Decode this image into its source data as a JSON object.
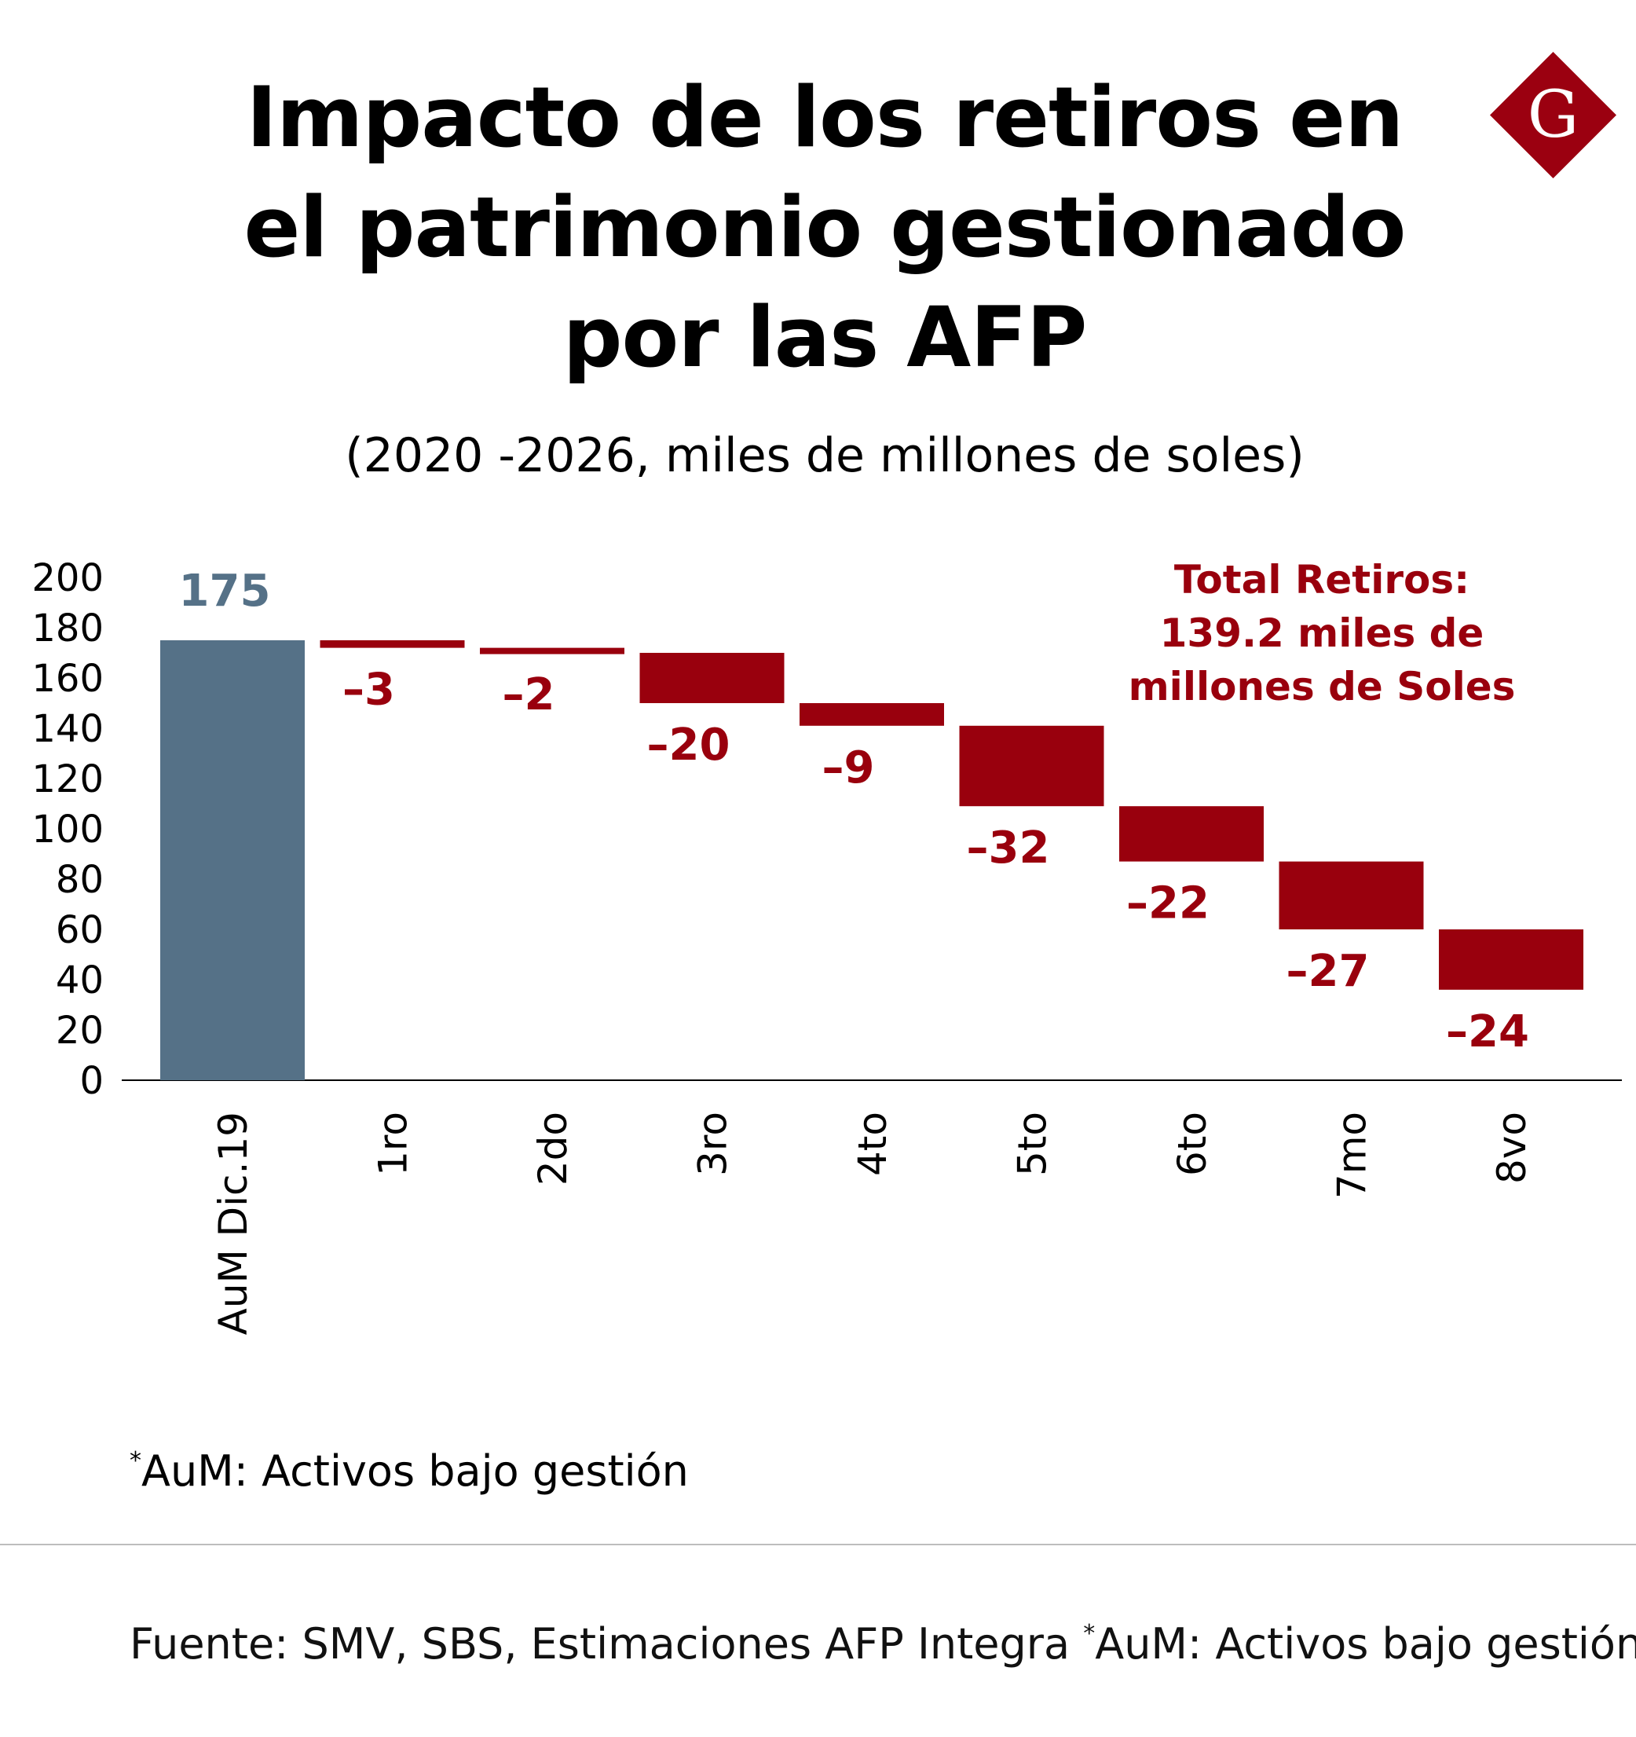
{
  "title_lines": [
    "Impacto de los retiros en",
    "el patrimonio gestionado",
    "por las AFP"
  ],
  "subtitle": "(2020 -2026, miles de millones de soles)",
  "logo": {
    "letter": "G",
    "color": "#9b0010"
  },
  "annotation": [
    "Total Retiros:",
    "139.2 miles de",
    "millones de Soles"
  ],
  "footnote": {
    "marker": "*",
    "text": "AuM: Activos bajo gestión"
  },
  "source": {
    "text": "Fuente:  SMV, SBS, Estimaciones AFP Integra ",
    "marker": "*",
    "note": "AuM: Activos bajo gestión"
  },
  "colors": {
    "total": "#557187",
    "decrease": "#99000d",
    "total_label": "#557187",
    "decrease_label": "#99000d"
  },
  "chart_data": {
    "type": "bar",
    "subtype": "waterfall",
    "categories": [
      "AuM Dic.19",
      "1ro",
      "2do",
      "3ro",
      "4to",
      "5to",
      "6to",
      "7mo",
      "8vo"
    ],
    "values": [
      175,
      -3,
      -2,
      -20,
      -9,
      -32,
      -22,
      -27,
      -24
    ],
    "data_labels": [
      "175",
      "-3",
      "-2",
      "-20",
      "-9",
      "-32",
      "-22",
      "-27",
      "-24"
    ],
    "bar_ranges": [
      [
        0,
        175
      ],
      [
        172,
        175
      ],
      [
        170,
        172
      ],
      [
        150,
        170
      ],
      [
        141,
        150
      ],
      [
        109,
        141
      ],
      [
        87,
        109
      ],
      [
        60,
        87
      ],
      [
        36,
        60
      ]
    ],
    "y_ticks": [
      0,
      20,
      40,
      60,
      80,
      100,
      120,
      140,
      160,
      180,
      200
    ],
    "ylim": [
      0,
      200
    ],
    "grid": false,
    "xlabel": "",
    "ylabel": ""
  }
}
